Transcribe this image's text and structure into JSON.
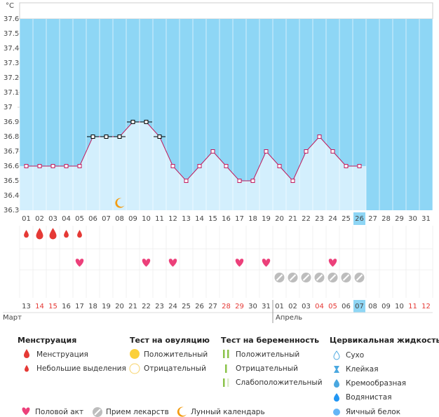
{
  "chart_data": {
    "type": "line",
    "unit": "°C",
    "categories": [
      "01",
      "02",
      "03",
      "04",
      "05",
      "06",
      "07",
      "08",
      "09",
      "10",
      "11",
      "12",
      "13",
      "14",
      "15",
      "16",
      "17",
      "18",
      "19",
      "20",
      "21",
      "22",
      "23",
      "24",
      "25",
      "26",
      "27",
      "28",
      "29",
      "30",
      "31"
    ],
    "series": [
      {
        "color": "#c2185b",
        "values": [
          36.6,
          36.6,
          36.6,
          36.6,
          36.6,
          36.8,
          36.8,
          36.8,
          36.9,
          36.9,
          36.8,
          36.6,
          36.5,
          36.6,
          36.7,
          36.6,
          36.5,
          36.5,
          36.7,
          36.6,
          36.5,
          36.7,
          36.8,
          36.7,
          36.6,
          36.6,
          null,
          null,
          null,
          null,
          null
        ]
      }
    ],
    "ylim": [
      36.3,
      37.6
    ],
    "yticks": [
      36.3,
      36.4,
      36.5,
      36.6,
      36.7,
      36.8,
      36.9,
      37,
      37.1,
      37.2,
      37.3,
      37.4,
      37.5,
      37.6
    ],
    "plot_color": "#8ed6f5",
    "area_color": "#d3effd",
    "marked_days": [
      "06",
      "07",
      "08",
      "09",
      "10",
      "11"
    ],
    "today": "26",
    "menstruation": [
      "02",
      "03"
    ],
    "spotting": [
      "01",
      "04",
      "05"
    ],
    "intercourse": [
      "05",
      "10",
      "12",
      "17",
      "19",
      "24"
    ],
    "medication": [
      "20",
      "21",
      "22",
      "23",
      "24",
      "25",
      "26"
    ],
    "lunar": [
      "08"
    ],
    "cycle_dates": [
      "13",
      "14",
      "15",
      "16",
      "17",
      "18",
      "19",
      "20",
      "21",
      "22",
      "23",
      "24",
      "25",
      "26",
      "27",
      "28",
      "29",
      "30",
      "31",
      "01",
      "02",
      "03",
      "04",
      "05",
      "06",
      "07",
      "08",
      "09",
      "10",
      "11",
      "12"
    ],
    "cycle_dates_red": [
      "14",
      "15",
      "28",
      "29",
      "04",
      "05",
      "11",
      "12"
    ],
    "months": [
      {
        "label": "Март",
        "start": "13"
      },
      {
        "label": "Апрель",
        "start": "01"
      }
    ]
  },
  "legend": {
    "groups": [
      {
        "title": "Менструация",
        "items": [
          "Менструация",
          "Небольшие выделения"
        ]
      },
      {
        "title": "Тест на овуляцию",
        "items": [
          "Положительный",
          "Отрицательный"
        ]
      },
      {
        "title": "Тест на беременность",
        "items": [
          "Положительный",
          "Отрицательный",
          "Слабоположительный"
        ]
      },
      {
        "title": "Цервикальная жидкость",
        "items": [
          "Сухо",
          "Клейкая",
          "Кремообразная",
          "Водянистая",
          "Яичный белок"
        ]
      }
    ],
    "bottom": [
      "Половой акт",
      "Прием лекарств",
      "Лунный календарь"
    ]
  }
}
